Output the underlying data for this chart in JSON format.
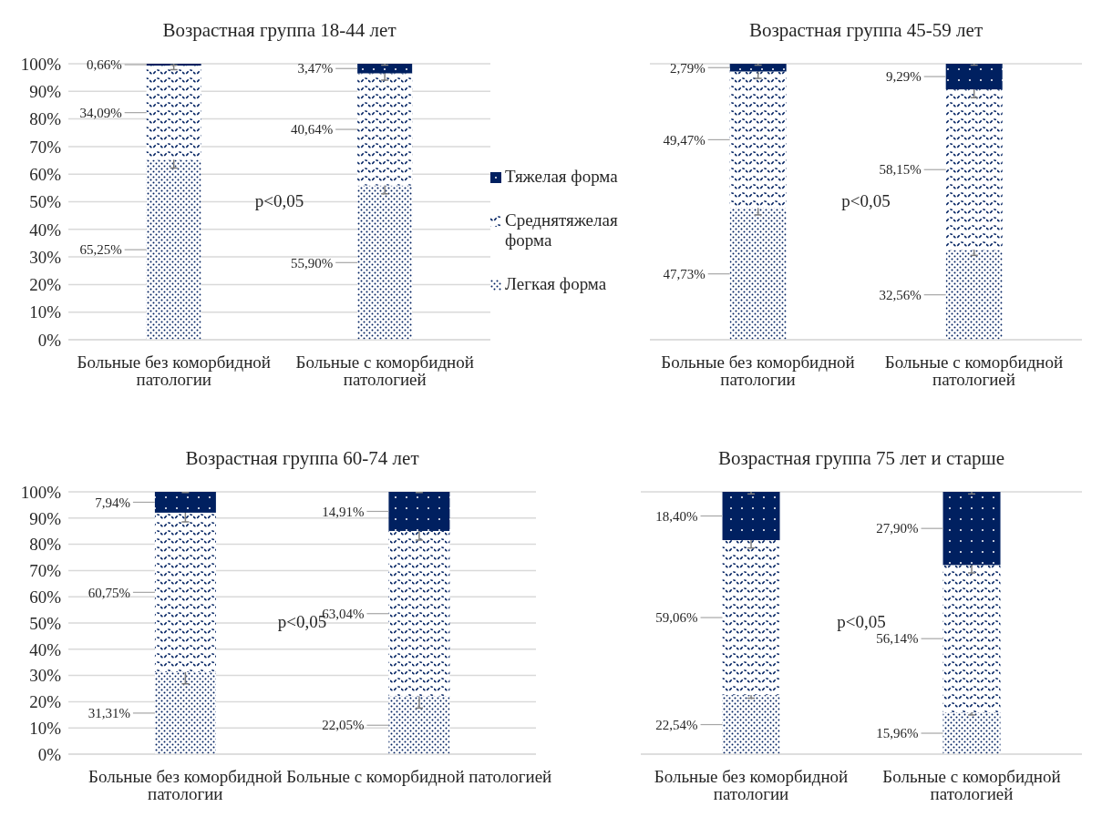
{
  "chart_data": [
    {
      "type": "bar",
      "stacked": true,
      "title": "Возрастная группа 18-44 лет",
      "categories": [
        "Больные без коморбидной патологии",
        "Больные с коморбидной патологией"
      ],
      "ylim": [
        0,
        100
      ],
      "yticks": [
        {
          "value": 0,
          "label": "0%"
        },
        {
          "value": 10,
          "label": "10%"
        },
        {
          "value": 20,
          "label": "20%"
        },
        {
          "value": 30,
          "label": "30%"
        },
        {
          "value": 40,
          "label": "40%"
        },
        {
          "value": 50,
          "label": "50%"
        },
        {
          "value": 60,
          "label": "60%"
        },
        {
          "value": 70,
          "label": "70%"
        },
        {
          "value": 80,
          "label": "80%"
        },
        {
          "value": 90,
          "label": "90%"
        },
        {
          "value": 100,
          "label": "100%"
        }
      ],
      "grid": "y",
      "legend": "right",
      "annotations": [
        "p<0,05"
      ],
      "series": [
        {
          "name": "Легкая форма",
          "color": "#002060",
          "values": [
            65.25,
            55.9
          ],
          "value_labels": [
            "65,25%",
            "55,90%"
          ],
          "errors": [
            3,
            3
          ]
        },
        {
          "name": "Среднятяжелая форма",
          "color": "#002060",
          "values": [
            34.09,
            40.64
          ],
          "value_labels": [
            "34,09%",
            "40,64%"
          ],
          "errors": [
            1.5,
            2.5
          ]
        },
        {
          "name": "Тяжелая форма",
          "color": "#002060",
          "values": [
            0.66,
            3.47
          ],
          "value_labels": [
            "0,66%",
            "3,47%"
          ],
          "errors": [
            0.5,
            0.5
          ]
        }
      ]
    },
    {
      "type": "bar",
      "stacked": true,
      "title": "Возрастная группа 45-59 лет",
      "categories": [
        "Больные без коморбидной патологии",
        "Больные с коморбидной патологией"
      ],
      "ylim": [
        0,
        100
      ],
      "yticks": [
        {
          "value": 0,
          "label": null
        },
        {
          "value": 10,
          "label": null
        },
        {
          "value": 20,
          "label": null
        },
        {
          "value": 30,
          "label": null
        },
        {
          "value": 40,
          "label": null
        },
        {
          "value": 50,
          "label": null
        },
        {
          "value": 60,
          "label": null
        },
        {
          "value": 70,
          "label": null
        },
        {
          "value": 80,
          "label": null
        },
        {
          "value": 90,
          "label": null
        },
        {
          "value": 100,
          "label": null
        }
      ],
      "tick_labels": "x",
      "grid": "y",
      "annotations": [
        "p<0,05"
      ],
      "series": [
        {
          "color": "#002060",
          "values": [
            47.73,
            32.56
          ],
          "value_labels": [
            "47,73%",
            "32,56%"
          ],
          "errors": [
            2.5,
            2
          ]
        },
        {
          "color": "#002060",
          "values": [
            49.47,
            58.15
          ],
          "value_labels": [
            "49,47%",
            "58,15%"
          ],
          "errors": [
            2.5,
            3
          ]
        },
        {
          "color": "#002060",
          "values": [
            2.79,
            9.29
          ],
          "value_labels": [
            "2,79%",
            "9,29%"
          ],
          "errors": [
            0.5,
            0.5
          ]
        }
      ]
    },
    {
      "type": "bar",
      "stacked": true,
      "title": "Возрастная группа 60-74 лет",
      "categories": [
        "Больные без коморбидной патологии",
        "Больные с коморбидной патологией"
      ],
      "ylim": [
        0,
        100
      ],
      "yticks": [
        {
          "value": 0,
          "label": "0%"
        },
        {
          "value": 10,
          "label": "10%"
        },
        {
          "value": 20,
          "label": "20%"
        },
        {
          "value": 30,
          "label": "30%"
        },
        {
          "value": 40,
          "label": "40%"
        },
        {
          "value": 50,
          "label": "50%"
        },
        {
          "value": 60,
          "label": "60%"
        },
        {
          "value": 70,
          "label": "70%"
        },
        {
          "value": 80,
          "label": "80%"
        },
        {
          "value": 90,
          "label": "90%"
        },
        {
          "value": 100,
          "label": "100%"
        }
      ],
      "grid": "y",
      "annotations": [
        "p<0,05"
      ],
      "series": [
        {
          "color": "#002060",
          "values": [
            31.31,
            22.05
          ],
          "value_labels": [
            "31,31%",
            "22,05%"
          ],
          "errors": [
            4.5,
            4.5
          ]
        },
        {
          "color": "#002060",
          "values": [
            60.75,
            63.04
          ],
          "value_labels": [
            "60,75%",
            "63,04%"
          ],
          "errors": [
            3.5,
            3.5
          ]
        },
        {
          "color": "#002060",
          "values": [
            7.94,
            14.91
          ],
          "value_labels": [
            "7,94%",
            "14,91%"
          ],
          "errors": [
            0.3,
            0.3
          ]
        }
      ]
    },
    {
      "type": "bar",
      "stacked": true,
      "title": "Возрастная группа 75 лет и старше",
      "categories": [
        "Больные без коморбидной патологии",
        "Больные с коморбидной патологией"
      ],
      "ylim": [
        0,
        100
      ],
      "yticks": [
        {
          "value": 0,
          "label": null
        },
        {
          "value": 10,
          "label": null
        },
        {
          "value": 20,
          "label": null
        },
        {
          "value": 30,
          "label": null
        },
        {
          "value": 40,
          "label": null
        },
        {
          "value": 50,
          "label": null
        },
        {
          "value": 60,
          "label": null
        },
        {
          "value": 70,
          "label": null
        },
        {
          "value": 80,
          "label": null
        },
        {
          "value": 90,
          "label": null
        },
        {
          "value": 100,
          "label": null
        }
      ],
      "tick_labels": "x",
      "grid": "y",
      "annotations": [
        "p<0,05"
      ],
      "series": [
        {
          "color": "#002060",
          "values": [
            22.54,
            15.96
          ],
          "value_labels": [
            "22,54%",
            "15,96%"
          ],
          "errors": [
            1.2,
            1
          ]
        },
        {
          "color": "#002060",
          "values": [
            59.06,
            56.14
          ],
          "value_labels": [
            "59,06%",
            "56,14%"
          ],
          "errors": [
            3,
            3
          ]
        },
        {
          "color": "#002060",
          "values": [
            18.4,
            27.9
          ],
          "value_labels": [
            "18,40%",
            "27,90%"
          ],
          "errors": [
            0.8,
            0.8
          ]
        }
      ]
    }
  ]
}
